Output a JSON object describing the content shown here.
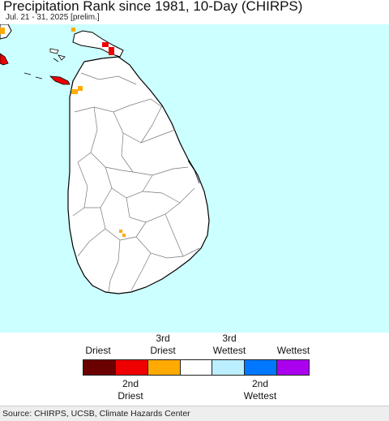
{
  "title": "Precipitation Rank since 1981, 10-Day (CHIRPS)",
  "subtitle": "Jul. 21 - 31, 2025 [prelim.]",
  "colors": {
    "ocean": "#ccffff",
    "land": "#ffffff",
    "border": "#777777",
    "coast": "#000000",
    "driest": "#6b0000",
    "second_driest": "#ee0000",
    "third_driest": "#ffaa00",
    "normal": "#ffffff",
    "third_wettest": "#bbeeff",
    "second_wettest": "#0077ff",
    "wettest": "#aa00ee"
  },
  "legend": {
    "top_labels": {
      "driest": "Driest",
      "third_driest": "3rd\nDriest",
      "third_wettest": "3rd\nWettest",
      "wettest": "Wettest"
    },
    "bottom_labels": {
      "second_driest": "2nd\nDriest",
      "second_wettest": "2nd\nWettest"
    },
    "swatches": [
      {
        "name": "driest",
        "color": "#6b0000"
      },
      {
        "name": "second-driest",
        "color": "#ee0000"
      },
      {
        "name": "third-driest",
        "color": "#ffaa00"
      },
      {
        "name": "normal",
        "color": "#ffffff"
      },
      {
        "name": "third-wettest",
        "color": "#bbeeff"
      },
      {
        "name": "second-wettest",
        "color": "#0077ff"
      },
      {
        "name": "wettest",
        "color": "#aa00ee"
      }
    ]
  },
  "footer": {
    "source": "Source: CHIRPS, UCSB, Climate Hazards Center"
  }
}
